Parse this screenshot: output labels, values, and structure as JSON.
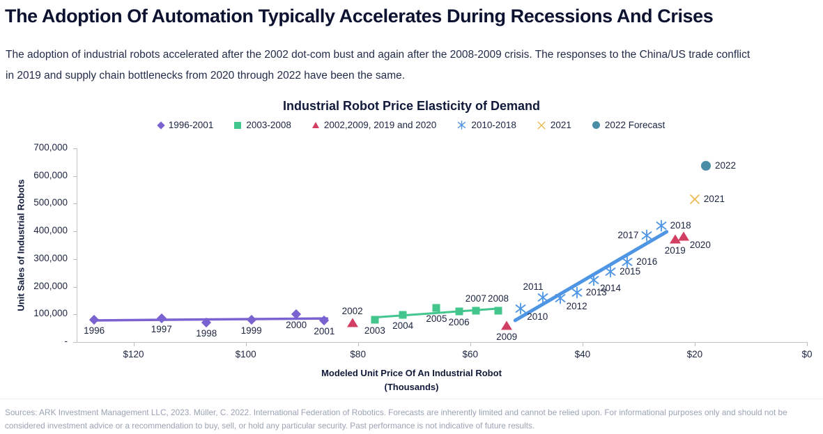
{
  "page": {
    "title": "The Adoption Of Automation Typically Accelerates During Recessions And Crises",
    "subtitle": "The adoption of industrial robots accelerated after the 2002 dot-com bust and again after the 2008-2009 crisis. The responses to the China/US trade conflict in 2019 and supply chain bottlenecks from 2020 through 2022 have been the same.",
    "footer": "Sources: ARK Investment Management LLC, 2023. Müller, C. 2022. International Federation of Robotics. Forecasts are inherently limited and cannot be relied upon. For informational purposes only and should not be considered investment advice or a recommendation to buy, sell, or hold any particular security. Past performance is not indicative of future results."
  },
  "chart_data": {
    "type": "scatter",
    "title": "Industrial Robot Price Elasticity of Demand",
    "grid": false,
    "legend_position": "top",
    "y_axis": {
      "label": "Unit Sales of Industrial Robots",
      "min": 0,
      "max": 700000,
      "ticks": [
        {
          "value": 700000,
          "label": "700,000"
        },
        {
          "value": 600000,
          "label": "600,000"
        },
        {
          "value": 500000,
          "label": "500,000"
        },
        {
          "value": 400000,
          "label": "400,000"
        },
        {
          "value": 300000,
          "label": "300,000"
        },
        {
          "value": 200000,
          "label": "200,000"
        },
        {
          "value": 100000,
          "label": "100,000"
        },
        {
          "value": 0,
          "label": "-"
        }
      ]
    },
    "x_axis": {
      "label": "Modeled Unit Price Of An Industrial Robot",
      "label2": "(Thousands)",
      "min": 0,
      "max": 130,
      "reversed": true,
      "ticks": [
        {
          "value": 120,
          "label": "$120"
        },
        {
          "value": 100,
          "label": "$100"
        },
        {
          "value": 80,
          "label": "$80"
        },
        {
          "value": 60,
          "label": "$60"
        },
        {
          "value": 40,
          "label": "$40"
        },
        {
          "value": 20,
          "label": "$20"
        },
        {
          "value": 0,
          "label": "$0"
        }
      ]
    },
    "series": [
      {
        "name": "1996-2001",
        "marker": "diamond",
        "color": "#7a62d0",
        "trendline": true,
        "line_width": 3.5,
        "line_ext": 4,
        "points": [
          {
            "year": "1996",
            "price_thousands": 127,
            "units": 80000,
            "label_pos": "below"
          },
          {
            "year": "1997",
            "price_thousands": 115,
            "units": 85000,
            "label_pos": "below"
          },
          {
            "year": "1998",
            "price_thousands": 107,
            "units": 70000,
            "label_pos": "below"
          },
          {
            "year": "1999",
            "price_thousands": 99,
            "units": 80000,
            "label_pos": "below"
          },
          {
            "year": "2000",
            "price_thousands": 91,
            "units": 100000,
            "label_pos": "below"
          },
          {
            "year": "2001",
            "price_thousands": 86,
            "units": 78000,
            "label_pos": "below"
          }
        ]
      },
      {
        "name": "2003-2008",
        "marker": "square",
        "color": "#42c68e",
        "trendline": true,
        "line_width": 3,
        "line_ext": 4,
        "points": [
          {
            "year": "2003",
            "price_thousands": 77,
            "units": 80000,
            "label_pos": "below"
          },
          {
            "year": "2004",
            "price_thousands": 72,
            "units": 97000,
            "label_pos": "below"
          },
          {
            "year": "2005",
            "price_thousands": 66,
            "units": 123000,
            "label_pos": "below"
          },
          {
            "year": "2006",
            "price_thousands": 62,
            "units": 111000,
            "label_pos": "below"
          },
          {
            "year": "2007",
            "price_thousands": 59,
            "units": 114000,
            "label_pos": "above"
          },
          {
            "year": "2008",
            "price_thousands": 55,
            "units": 113000,
            "label_pos": "above"
          }
        ]
      },
      {
        "name": "2002,2009, 2019 and 2020",
        "marker": "triangle",
        "color": "#d13e62",
        "trendline": false,
        "points": [
          {
            "year": "2002",
            "price_thousands": 81,
            "units": 68000,
            "label_pos": "above"
          },
          {
            "year": "2009",
            "price_thousands": 53.5,
            "units": 58000,
            "label_pos": "below"
          },
          {
            "year": "2019",
            "price_thousands": 23.5,
            "units": 370000,
            "label_pos": "below"
          },
          {
            "year": "2020",
            "price_thousands": 22,
            "units": 380000,
            "label_pos": "below-right"
          }
        ]
      },
      {
        "name": "2010-2018",
        "marker": "asterisk",
        "color": "#4e95e3",
        "trendline": true,
        "line_width": 5,
        "line_ext": 8,
        "points": [
          {
            "year": "2010",
            "price_thousands": 51,
            "units": 120000,
            "label_pos": "below-right"
          },
          {
            "year": "2011",
            "price_thousands": 47,
            "units": 162000,
            "label_pos": "above-left"
          },
          {
            "year": "2012",
            "price_thousands": 44,
            "units": 159000,
            "label_pos": "below-right"
          },
          {
            "year": "2013",
            "price_thousands": 41,
            "units": 178000,
            "label_pos": "right"
          },
          {
            "year": "2014",
            "price_thousands": 38,
            "units": 225000,
            "label_pos": "below-right"
          },
          {
            "year": "2015",
            "price_thousands": 35,
            "units": 254000,
            "label_pos": "right"
          },
          {
            "year": "2016",
            "price_thousands": 32,
            "units": 290000,
            "label_pos": "right"
          },
          {
            "year": "2017",
            "price_thousands": 28.5,
            "units": 385000,
            "label_pos": "left"
          },
          {
            "year": "2018",
            "price_thousands": 26,
            "units": 420000,
            "label_pos": "right"
          }
        ]
      },
      {
        "name": "2021",
        "marker": "x",
        "color": "#edba55",
        "trendline": false,
        "points": [
          {
            "year": "2021",
            "price_thousands": 20,
            "units": 515000,
            "label_pos": "right"
          }
        ]
      },
      {
        "name": "2022 Forecast",
        "marker": "circle",
        "color": "#4a8da6",
        "trendline": false,
        "points": [
          {
            "year": "2022",
            "price_thousands": 18,
            "units": 638000,
            "label_pos": "right"
          }
        ]
      }
    ]
  }
}
